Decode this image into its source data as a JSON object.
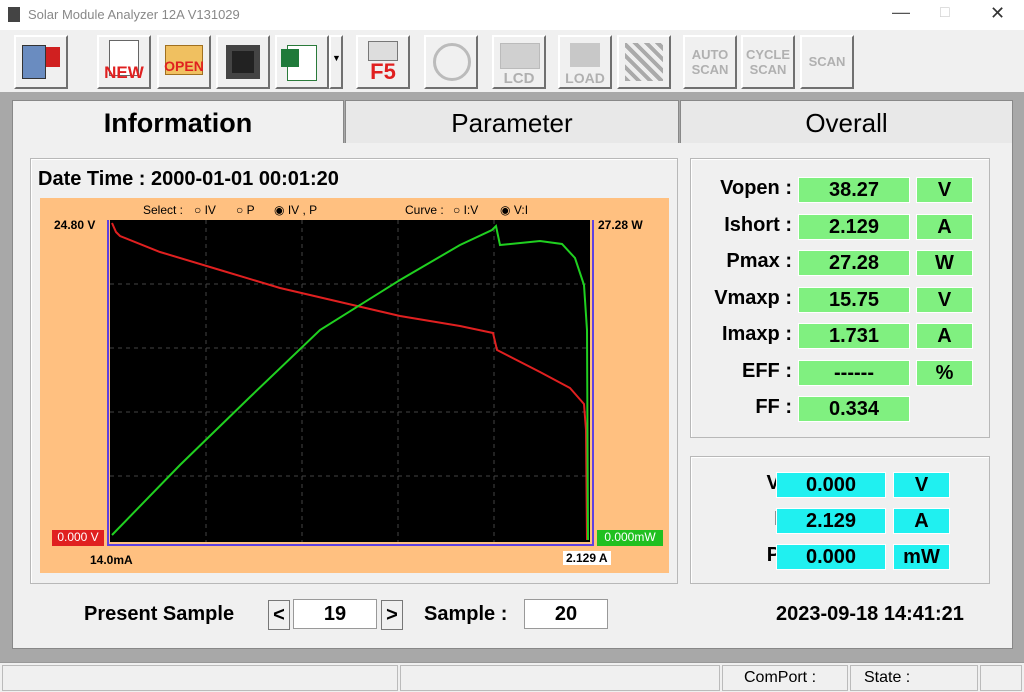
{
  "window": {
    "title": "Solar Module Analyzer 12A V131029"
  },
  "toolbar": {
    "buttons": [
      "NEW",
      "OPEN",
      "F5",
      "LCD",
      "LOAD",
      "AUTO SCAN",
      "CYCLE SCAN",
      "SCAN"
    ]
  },
  "tabs": [
    "Information",
    "Parameter",
    "Overall"
  ],
  "info": {
    "datetime": "Date Time : 2000-01-01 00:01:20"
  },
  "graph": {
    "select_label": "Select :",
    "select_options": [
      "IV",
      "P",
      "IV , P"
    ],
    "curve_label": "Curve :",
    "curve_options": [
      "I:V",
      "V:I"
    ],
    "v_max": "24.80 V",
    "p_max": "27.28 W",
    "v_min": "0.000 V",
    "p_min": "0.000mW",
    "i_min": "14.0mA",
    "i_max": "2.129 A"
  },
  "results": [
    {
      "label": "Vopen :",
      "value": "38.27",
      "unit": "V"
    },
    {
      "label": "Ishort :",
      "value": "2.129",
      "unit": "A"
    },
    {
      "label": "Pmax :",
      "value": "27.28",
      "unit": "W"
    },
    {
      "label": "Vmaxp :",
      "value": "15.75",
      "unit": "V"
    },
    {
      "label": "Imaxp :",
      "value": "1.731",
      "unit": "A"
    },
    {
      "label": "EFF :",
      "value": "------",
      "unit": "%"
    },
    {
      "label": "FF :",
      "value": "0.334"
    }
  ],
  "live": [
    {
      "label": "V :",
      "value": "0.000",
      "unit": "V"
    },
    {
      "label": "I  :",
      "value": "2.129",
      "unit": "A"
    },
    {
      "label": "P :",
      "value": "0.000",
      "unit": "mW"
    }
  ],
  "footer": {
    "present_label": "Present Sample",
    "prev": "<",
    "present_value": "19",
    "next": ">",
    "sample_label": "Sample :",
    "sample_value": "20",
    "clock": "2023-09-18 14:41:21"
  },
  "status": {
    "comport": "ComPort :",
    "state": "State :"
  }
}
